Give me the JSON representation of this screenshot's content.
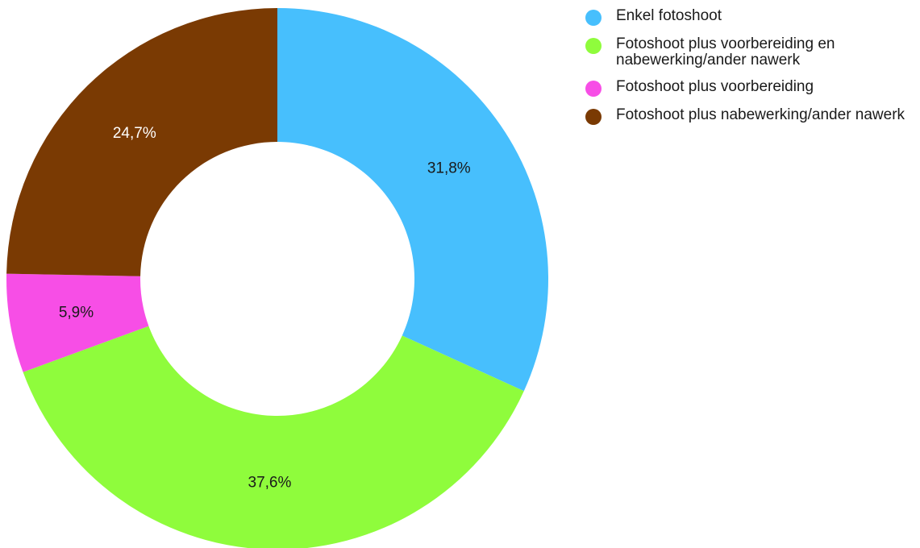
{
  "chart_data": {
    "type": "pie",
    "variant": "donut",
    "slices": [
      {
        "label": "Enkel fotoshoot",
        "value": 31.8,
        "display": "31,8%",
        "color": "#47bffd",
        "label_color": "#1a1a1a"
      },
      {
        "label": "Fotoshoot plus voorbereiding en nabewerking/ander nawerk",
        "value": 37.6,
        "display": "37,6%",
        "color": "#8ffc3c",
        "label_color": "#1a1a1a"
      },
      {
        "label": "Fotoshoot plus voorbereiding",
        "value": 5.9,
        "display": "5,9%",
        "color": "#f74ee6",
        "label_color": "#1a1a1a"
      },
      {
        "label": "Fotoshoot plus nabewerking/ander nawerk",
        "value": 24.7,
        "display": "24,7%",
        "color": "#7a3a03",
        "label_color": "#ffffff"
      }
    ],
    "start_angle_deg": 0,
    "direction": "clockwise",
    "legend_position": "top-right"
  }
}
